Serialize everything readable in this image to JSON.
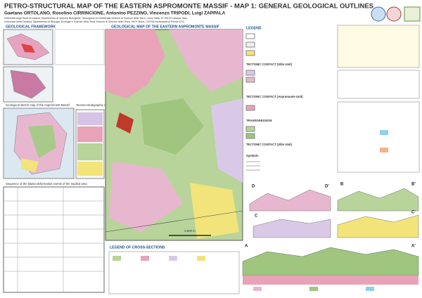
{
  "header": {
    "title": "PETRO-STRUCTURAL MAP OF THE EASTERN ASPROMONTE MASSIF - MAP 1: GENERAL GEOLOGICAL OUTLINES",
    "authors": "Gaetano ORTOLANO, Rosolino CIRRINCIONE, Antonino PEZZINO, Vincenzo TRIPODI, Luigi ZAPPALA",
    "affiliations": [
      "Università degli Studi di Catania, Dipartimento di Scienze Biologiche, Geologiche ed Ambientali Sezione di Scienze della Terra, Corso Italia, 57 95129 Catania, Italy",
      "Università della Calabria, Dipartimento di Biologia, Ecologia e Scienze della Terra Sezione di Scienze della Terra, Via P. Bucci, I-87036 Arcavacata di Rende (CS)"
    ]
  },
  "left": {
    "framework": "GEOLOGICAL FRAMEWORK",
    "sketch": "Geological sketch map of the Aspromonte Massif",
    "column": "Tectono-stratigraphic column of the Aspromonte Massif",
    "sequence": "Sequence of the blasto-deformation events of the studied area"
  },
  "map": {
    "title": "GEOLOGICAL MAP OF THE EASTERN ASPROMONTE MASSIF",
    "scale": "5,000 m"
  },
  "legend": {
    "title": "LEGEND",
    "headers": [
      "TECTONIC CONTACT (Stilo Unit)",
      "TECTONIC CONTACT (Aspromonte Unit)",
      "TRANSGRESSION",
      "TECTONIC CONTACT (Stilo Unit)",
      "Symbols"
    ]
  },
  "sections": {
    "title": "LEGEND OF CROSS-SECTIONS",
    "labels": [
      "D",
      "D'",
      "B",
      "B'",
      "C",
      "C'",
      "A",
      "A'"
    ]
  }
}
